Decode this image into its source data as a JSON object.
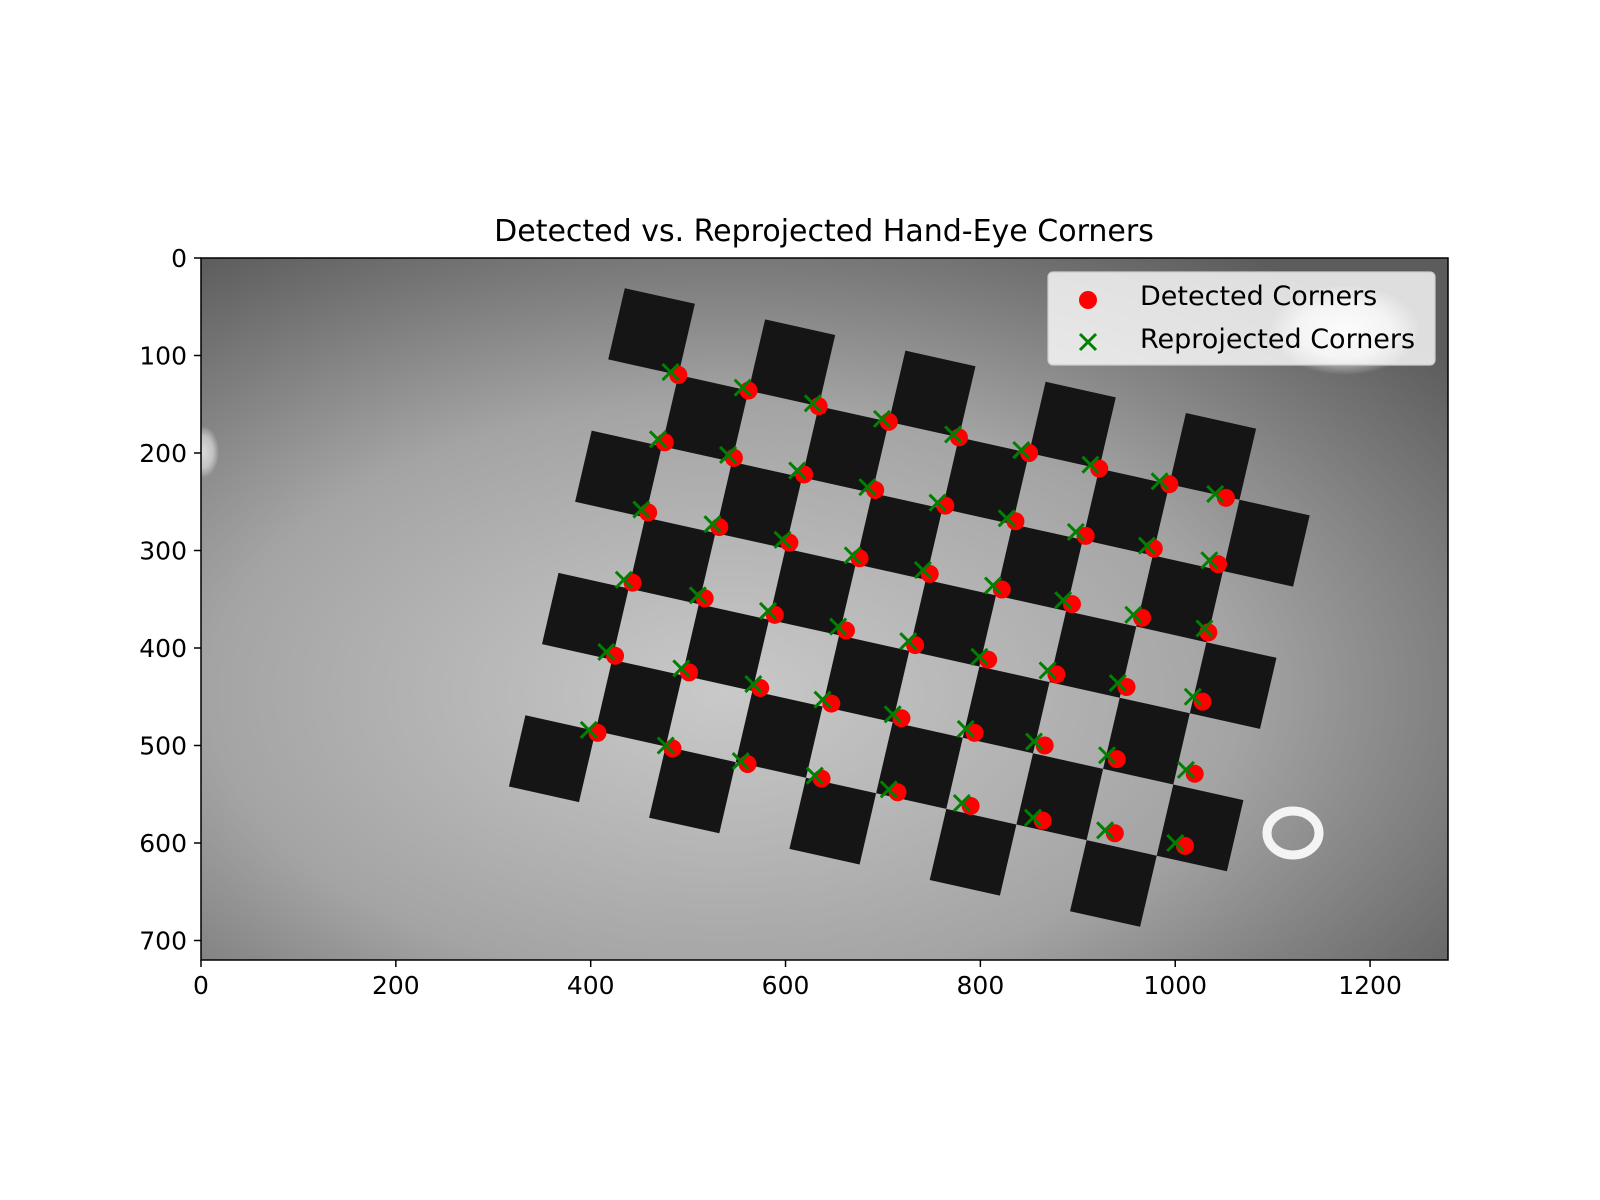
{
  "chart_data": {
    "type": "scatter",
    "title": "Detected vs. Reprojected Hand-Eye Corners",
    "xlabel": "",
    "ylabel": "",
    "xlim": [
      0,
      1280
    ],
    "ylim": [
      720,
      0
    ],
    "y_inverted": true,
    "grid": false,
    "background": "grayscale camera image of a tilted checkerboard calibration target",
    "x_ticks": [
      0,
      200,
      400,
      600,
      800,
      1000,
      1200
    ],
    "y_ticks": [
      0,
      100,
      200,
      300,
      400,
      500,
      600,
      700
    ],
    "legend_placement": "top-right",
    "board": {
      "cols": 9,
      "rows": 6,
      "origin": [
        490,
        120
      ],
      "col_step": [
        72,
        16
      ],
      "row_step": [
        -17,
        73
      ],
      "dark_parity": "odd"
    },
    "series": [
      {
        "name": "Detected Corners",
        "marker": "circle",
        "color": "#ff0000",
        "points": [
          [
            490,
            120
          ],
          [
            562,
            136
          ],
          [
            634,
            152
          ],
          [
            706,
            168
          ],
          [
            778,
            184
          ],
          [
            850,
            200
          ],
          [
            922,
            216
          ],
          [
            994,
            232
          ],
          [
            1052,
            246
          ],
          [
            476,
            189
          ],
          [
            547,
            205
          ],
          [
            619,
            222
          ],
          [
            692,
            238
          ],
          [
            764,
            254
          ],
          [
            836,
            270
          ],
          [
            908,
            285
          ],
          [
            978,
            298
          ],
          [
            1044,
            314
          ],
          [
            459,
            261
          ],
          [
            532,
            276
          ],
          [
            604,
            292
          ],
          [
            676,
            308
          ],
          [
            748,
            324
          ],
          [
            822,
            340
          ],
          [
            894,
            355
          ],
          [
            966,
            369
          ],
          [
            1034,
            384
          ],
          [
            443,
            333
          ],
          [
            517,
            349
          ],
          [
            589,
            366
          ],
          [
            662,
            382
          ],
          [
            733,
            397
          ],
          [
            808,
            412
          ],
          [
            878,
            427
          ],
          [
            950,
            440
          ],
          [
            1028,
            455
          ],
          [
            425,
            408
          ],
          [
            501,
            425
          ],
          [
            574,
            441
          ],
          [
            647,
            457
          ],
          [
            719,
            472
          ],
          [
            794,
            487
          ],
          [
            866,
            500
          ],
          [
            940,
            514
          ],
          [
            1020,
            529
          ],
          [
            407,
            487
          ],
          [
            484,
            503
          ],
          [
            561,
            519
          ],
          [
            637,
            534
          ],
          [
            715,
            548
          ],
          [
            790,
            562
          ],
          [
            864,
            577
          ],
          [
            938,
            590
          ],
          [
            1010,
            603
          ]
        ]
      },
      {
        "name": "Reprojected Corners",
        "marker": "x",
        "color": "#008000",
        "points": [
          [
            482,
            117
          ],
          [
            556,
            133
          ],
          [
            628,
            149
          ],
          [
            699,
            165
          ],
          [
            772,
            181
          ],
          [
            842,
            197
          ],
          [
            913,
            212
          ],
          [
            984,
            229
          ],
          [
            1041,
            242
          ],
          [
            469,
            186
          ],
          [
            541,
            202
          ],
          [
            612,
            218
          ],
          [
            684,
            235
          ],
          [
            756,
            251
          ],
          [
            827,
            267
          ],
          [
            898,
            281
          ],
          [
            971,
            295
          ],
          [
            1035,
            310
          ],
          [
            452,
            258
          ],
          [
            525,
            273
          ],
          [
            597,
            289
          ],
          [
            669,
            305
          ],
          [
            741,
            320
          ],
          [
            813,
            336
          ],
          [
            885,
            351
          ],
          [
            957,
            366
          ],
          [
            1030,
            380
          ],
          [
            434,
            330
          ],
          [
            510,
            346
          ],
          [
            582,
            362
          ],
          [
            654,
            378
          ],
          [
            726,
            393
          ],
          [
            799,
            409
          ],
          [
            869,
            423
          ],
          [
            941,
            436
          ],
          [
            1018,
            450
          ],
          [
            416,
            404
          ],
          [
            493,
            421
          ],
          [
            567,
            437
          ],
          [
            638,
            453
          ],
          [
            710,
            468
          ],
          [
            785,
            483
          ],
          [
            855,
            496
          ],
          [
            930,
            510
          ],
          [
            1011,
            525
          ],
          [
            398,
            484
          ],
          [
            477,
            500
          ],
          [
            554,
            516
          ],
          [
            630,
            531
          ],
          [
            706,
            545
          ],
          [
            781,
            559
          ],
          [
            854,
            574
          ],
          [
            928,
            587
          ],
          [
            1000,
            600
          ]
        ]
      }
    ]
  }
}
